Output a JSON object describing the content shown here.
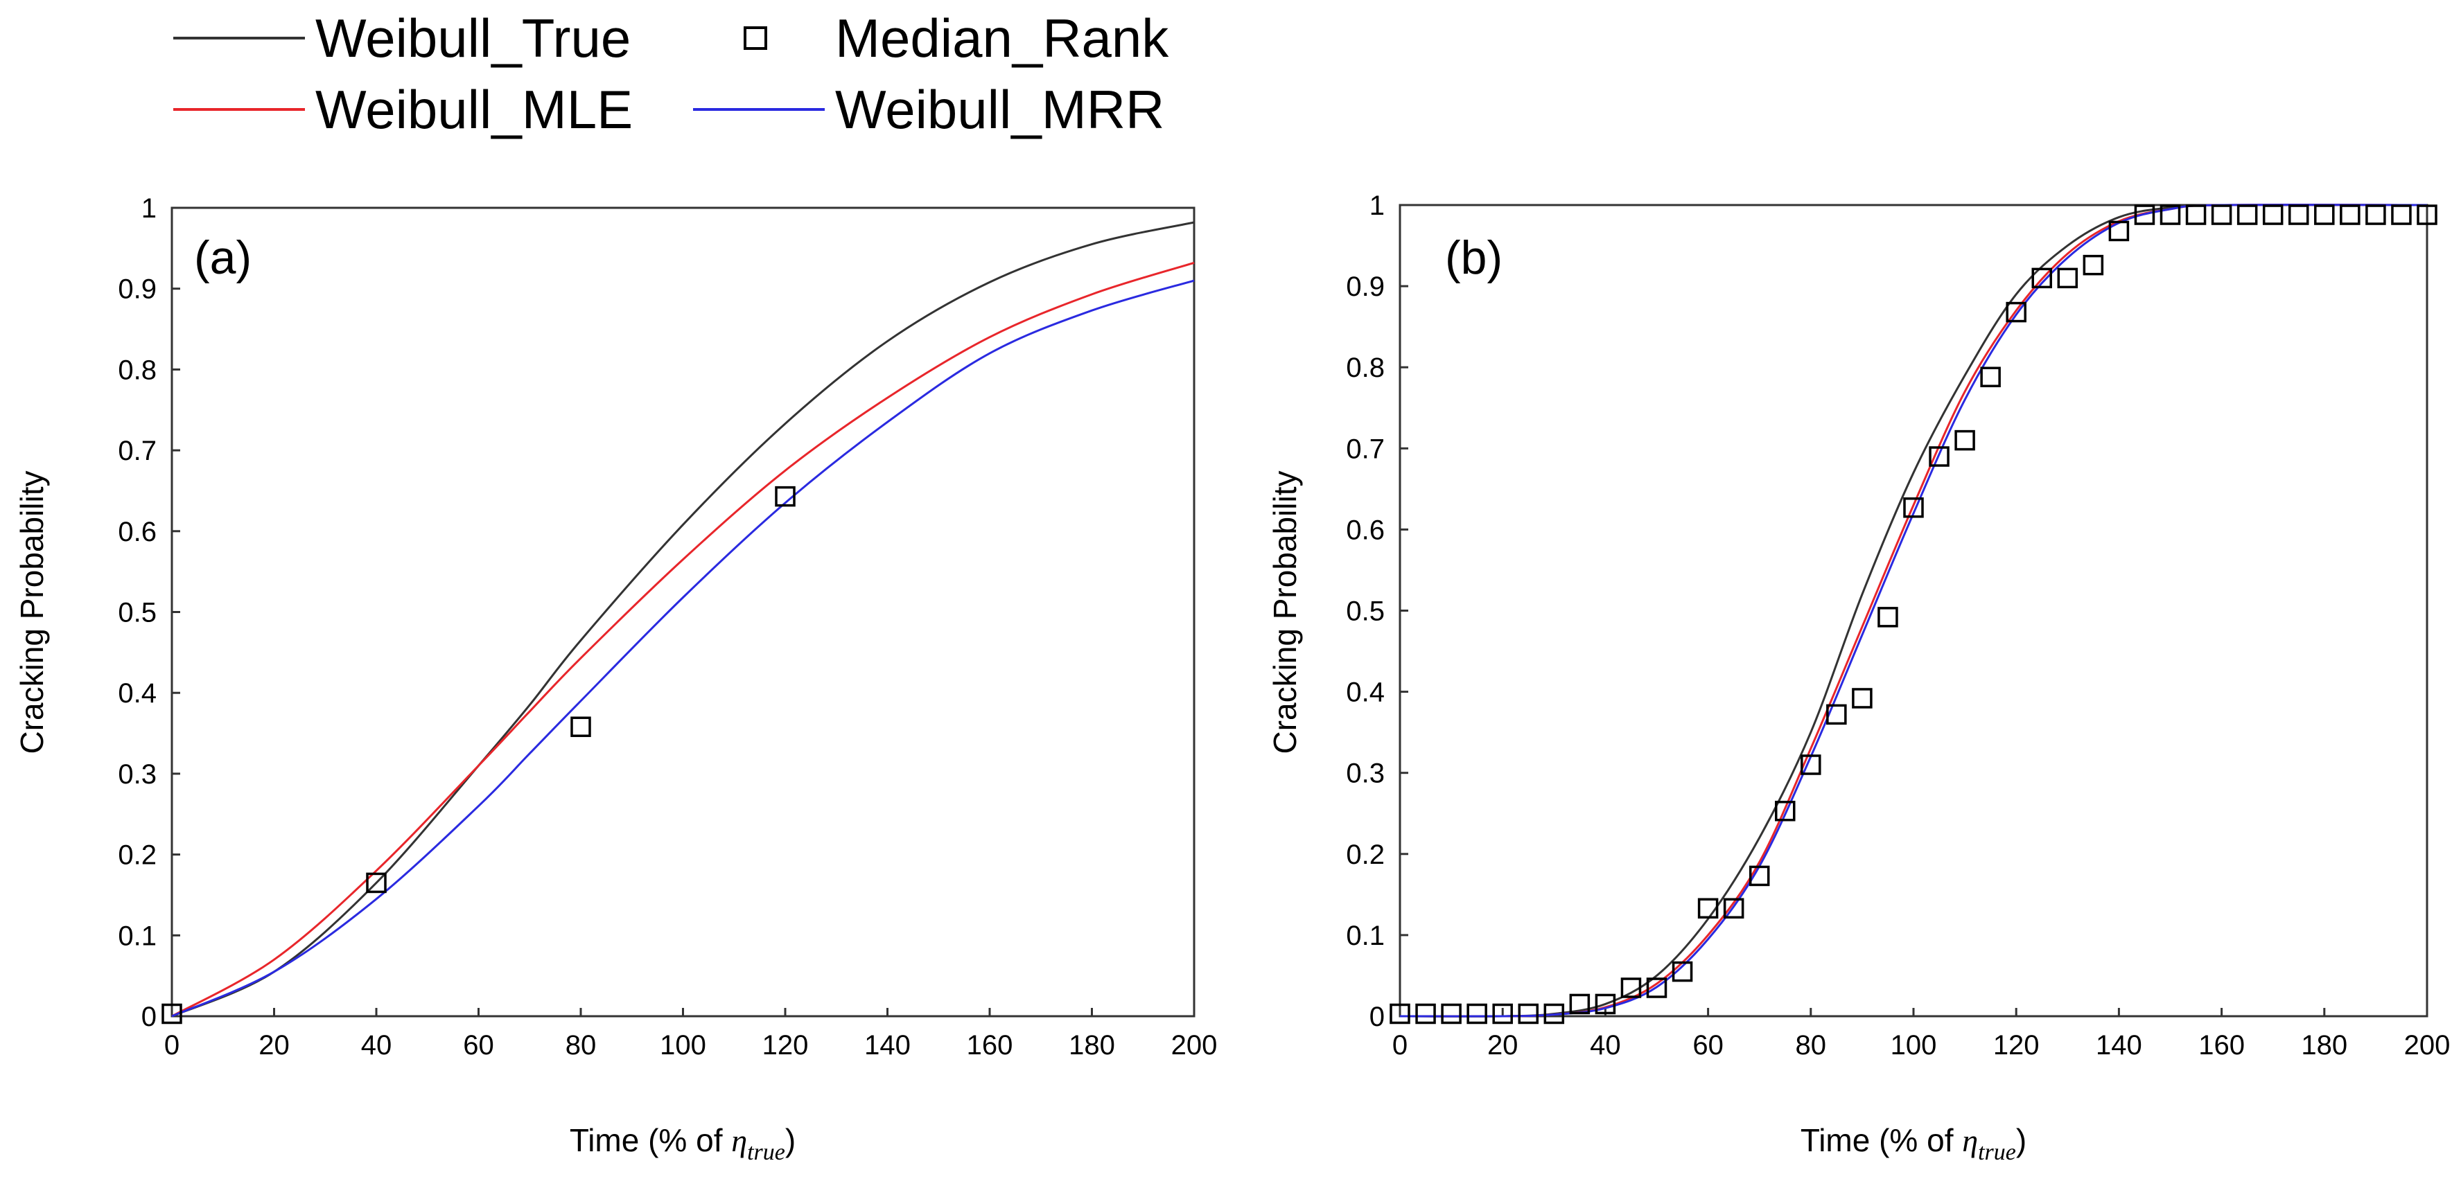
{
  "legend": {
    "entries": [
      {
        "label": "Weibull_True",
        "marker": "line",
        "color": "#333333"
      },
      {
        "label": "Median_Rank",
        "marker": "open-square",
        "color": "#000000"
      },
      {
        "label": "Weibull_MLE",
        "marker": "line",
        "color": "#e8262b"
      },
      {
        "label": "Weibull_MRR",
        "marker": "line",
        "color": "#2a2ae0"
      }
    ]
  },
  "chart_data": [
    {
      "panel_label": "(a)",
      "type": "line",
      "xlabel": "Time (% of ηtrue)",
      "xlabel_parts": {
        "prefix": "Time (% of ",
        "symbol": "η",
        "subscript": "true",
        "suffix": ")"
      },
      "ylabel": "Cracking Probability",
      "xlim": [
        0,
        200
      ],
      "ylim": [
        0,
        1
      ],
      "xticks": [
        0,
        20,
        40,
        60,
        80,
        100,
        120,
        140,
        160,
        180,
        200
      ],
      "yticks": [
        0,
        0.1,
        0.2,
        0.3,
        0.4,
        0.5,
        0.6,
        0.7,
        0.8,
        0.9,
        1
      ],
      "grid": false,
      "series": [
        {
          "name": "Weibull_True",
          "color": "#333333",
          "kind": "line",
          "x": [
            0,
            20,
            40,
            60,
            70,
            80,
            100,
            120,
            140,
            160,
            180,
            200
          ],
          "y": [
            0,
            0.055,
            0.165,
            0.31,
            0.385,
            0.465,
            0.608,
            0.733,
            0.835,
            0.908,
            0.955,
            0.982
          ]
        },
        {
          "name": "Weibull_MLE",
          "color": "#e8262b",
          "kind": "line",
          "x": [
            0,
            20,
            40,
            60,
            70,
            80,
            100,
            120,
            140,
            160,
            180,
            200
          ],
          "y": [
            0,
            0.07,
            0.18,
            0.31,
            0.377,
            0.443,
            0.565,
            0.675,
            0.765,
            0.84,
            0.893,
            0.932
          ]
        },
        {
          "name": "Weibull_MRR",
          "color": "#2a2ae0",
          "kind": "line",
          "x": [
            0,
            20,
            40,
            60,
            70,
            80,
            100,
            120,
            140,
            160,
            180,
            200
          ],
          "y": [
            0,
            0.055,
            0.145,
            0.26,
            0.325,
            0.39,
            0.518,
            0.635,
            0.735,
            0.82,
            0.873,
            0.91
          ]
        },
        {
          "name": "Median_Rank",
          "color": "#000000",
          "kind": "marker",
          "x": [
            0,
            40,
            80,
            120
          ],
          "y": [
            0.003,
            0.165,
            0.358,
            0.643
          ]
        }
      ]
    },
    {
      "panel_label": "(b)",
      "type": "line",
      "xlabel": "Time (% of ηtrue)",
      "xlabel_parts": {
        "prefix": "Time (% of ",
        "symbol": "η",
        "subscript": "true",
        "suffix": ")"
      },
      "ylabel": "Cracking Probability",
      "xlim": [
        0,
        200
      ],
      "ylim": [
        0,
        1
      ],
      "xticks": [
        0,
        20,
        40,
        60,
        80,
        100,
        120,
        140,
        160,
        180,
        200
      ],
      "yticks": [
        0,
        0.1,
        0.2,
        0.3,
        0.4,
        0.5,
        0.6,
        0.7,
        0.8,
        0.9,
        1
      ],
      "grid": false,
      "series": [
        {
          "name": "Weibull_True",
          "color": "#333333",
          "kind": "line",
          "x": [
            0,
            20,
            30,
            40,
            50,
            60,
            70,
            80,
            90,
            100,
            110,
            120,
            130,
            140,
            150,
            160,
            200
          ],
          "y": [
            0,
            0.0,
            0.003,
            0.015,
            0.05,
            0.12,
            0.22,
            0.35,
            0.52,
            0.67,
            0.79,
            0.89,
            0.95,
            0.985,
            0.997,
            1.0,
            1.0
          ]
        },
        {
          "name": "Weibull_MLE",
          "color": "#e8262b",
          "kind": "line",
          "x": [
            0,
            20,
            30,
            40,
            50,
            60,
            70,
            80,
            90,
            100,
            110,
            120,
            130,
            140,
            150,
            160,
            200
          ],
          "y": [
            0,
            0.0,
            0.002,
            0.011,
            0.04,
            0.1,
            0.19,
            0.33,
            0.48,
            0.63,
            0.77,
            0.87,
            0.94,
            0.98,
            0.995,
            1.0,
            1.0
          ]
        },
        {
          "name": "Weibull_MRR",
          "color": "#2a2ae0",
          "kind": "line",
          "x": [
            0,
            20,
            30,
            40,
            50,
            60,
            70,
            80,
            90,
            100,
            110,
            120,
            130,
            140,
            150,
            160,
            200
          ],
          "y": [
            0,
            0.0,
            0.002,
            0.01,
            0.036,
            0.095,
            0.185,
            0.32,
            0.47,
            0.62,
            0.76,
            0.865,
            0.935,
            0.978,
            0.995,
            1.0,
            1.0
          ]
        },
        {
          "name": "Median_Rank",
          "color": "#000000",
          "kind": "marker",
          "x": [
            0,
            5,
            10,
            15,
            20,
            25,
            30,
            35,
            40,
            45,
            50,
            55,
            60,
            65,
            70,
            75,
            80,
            85,
            90,
            95,
            100,
            105,
            110,
            115,
            120,
            125,
            130,
            135,
            140,
            145,
            150,
            155,
            160,
            165,
            170,
            175,
            180,
            185,
            190,
            195,
            200
          ],
          "y": [
            0.003,
            0.003,
            0.003,
            0.003,
            0.003,
            0.003,
            0.003,
            0.015,
            0.015,
            0.035,
            0.035,
            0.055,
            0.133,
            0.133,
            0.173,
            0.253,
            0.31,
            0.372,
            0.392,
            0.492,
            0.627,
            0.69,
            0.71,
            0.788,
            0.868,
            0.91,
            0.91,
            0.926,
            0.968,
            0.988,
            0.988,
            0.988,
            0.988,
            0.988,
            0.988,
            0.988,
            0.988,
            0.988,
            0.988,
            0.988,
            0.988
          ]
        }
      ]
    }
  ]
}
